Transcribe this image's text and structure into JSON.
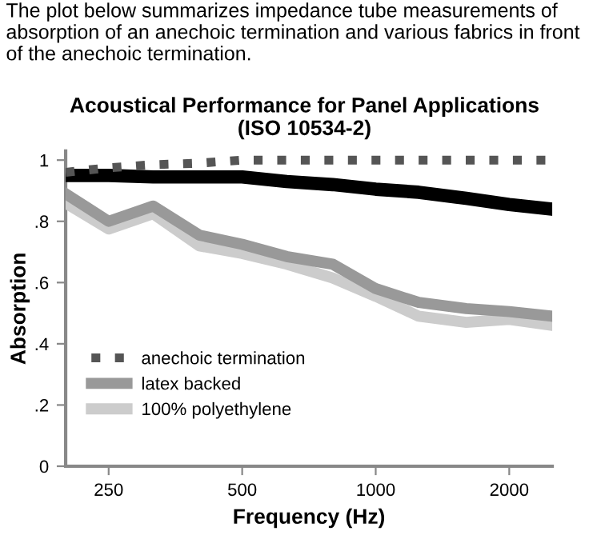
{
  "chart_data": {
    "type": "line",
    "title": "Acoustical Performance for Panel Applications\n(ISO 10534-2)",
    "annotations": [
      "The plot below summarizes impedance tube measurements of absorption of an anechoic termination and various fabrics in front of the anechoic termination."
    ],
    "xlabel": "Frequency (Hz)",
    "ylabel": "Absorption",
    "x": [
      200,
      250,
      315,
      400,
      500,
      630,
      800,
      1000,
      1250,
      1600,
      2000,
      2500
    ],
    "series": [
      {
        "name": "anechoic termination",
        "color": "#555555",
        "line_style": "dotted",
        "values": [
          0.96,
          0.975,
          0.985,
          0.99,
          1.0,
          1.0,
          1.0,
          1.0,
          1.0,
          1.0,
          1.0,
          1.0
        ]
      },
      {
        "color": "#000000",
        "values": [
          0.95,
          0.95,
          0.945,
          0.945,
          0.945,
          0.93,
          0.92,
          0.905,
          0.895,
          0.875,
          0.855,
          0.84
        ]
      },
      {
        "name": "latex backed",
        "color": "#999999",
        "values": [
          0.89,
          0.8,
          0.85,
          0.755,
          0.725,
          0.685,
          0.66,
          0.58,
          0.535,
          0.515,
          0.505,
          0.49
        ]
      },
      {
        "name": "100% polyethylene",
        "color": "#cccccc",
        "values": [
          0.86,
          0.775,
          0.825,
          0.72,
          0.695,
          0.66,
          0.615,
          0.555,
          0.49,
          0.47,
          0.48,
          0.46
        ]
      }
    ],
    "log": "x",
    "xlim": [
      200,
      2500
    ],
    "xticks": [
      250,
      500,
      1000,
      2000
    ],
    "ylim": [
      0,
      1.03
    ],
    "yticks": [
      {
        "value": 0,
        "label": "0"
      },
      {
        "value": 0.2,
        "label": ".2"
      },
      {
        "value": 0.4,
        "label": ".4"
      },
      {
        "value": 0.6,
        "label": ".6"
      },
      {
        "value": 0.8,
        "label": ".8"
      },
      {
        "value": 1,
        "label": "1"
      }
    ],
    "legend": "lower left",
    "grid": false
  }
}
